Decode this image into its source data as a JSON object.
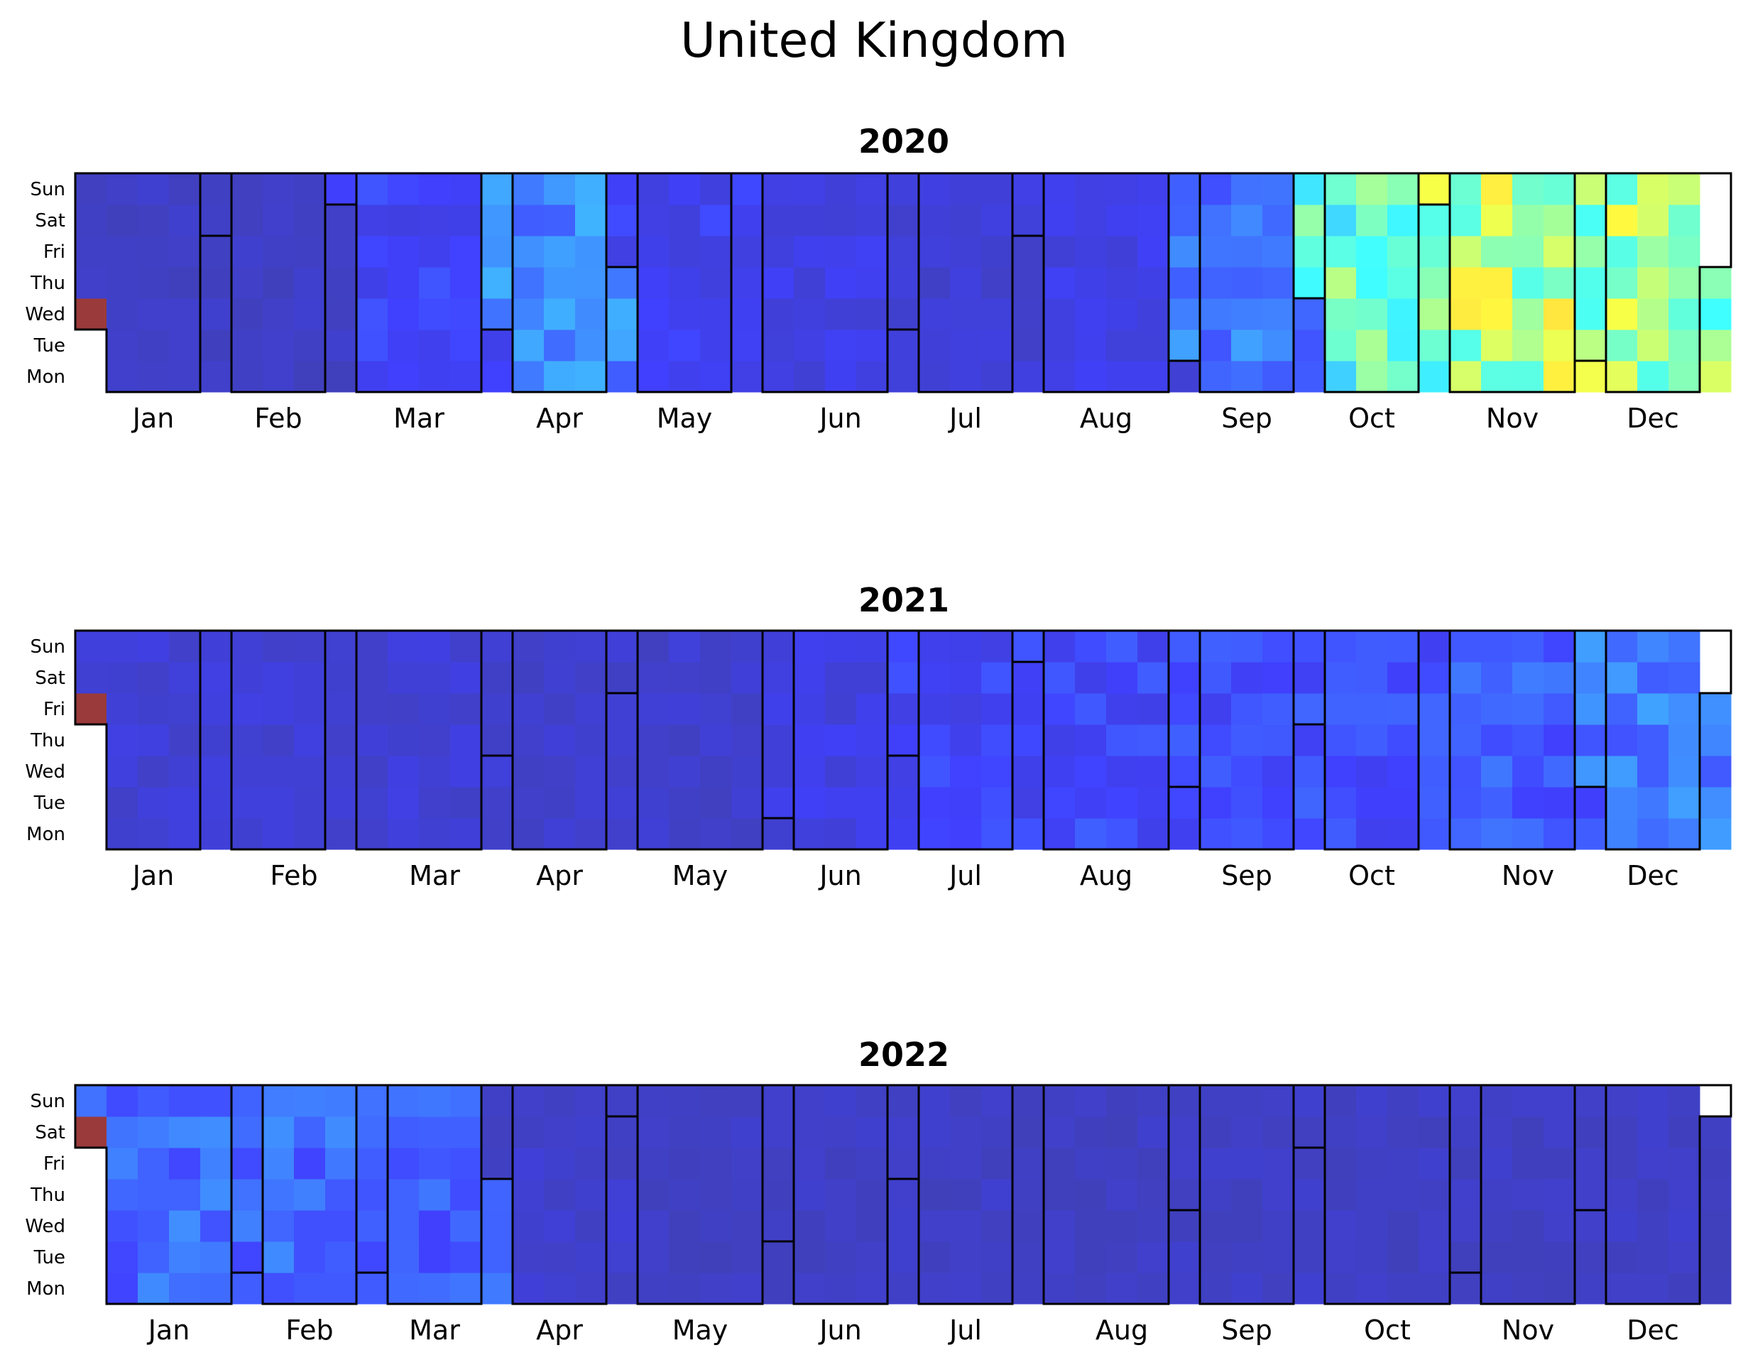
{
  "chart_data": {
    "type": "heatmap",
    "title": "United Kingdom",
    "colormap": "jet",
    "day_labels": [
      "Sun",
      "Sat",
      "Fri",
      "Thu",
      "Wed",
      "Tue",
      "Mon"
    ],
    "month_labels": [
      "Jan",
      "Feb",
      "Mar",
      "Apr",
      "May",
      "Jun",
      "Jul",
      "Aug",
      "Sep",
      "Oct",
      "Nov",
      "Dec"
    ],
    "grid": false,
    "legend": "none",
    "panels": [
      {
        "year": "2020",
        "first_weekday_mon0": 2,
        "days_in_year": 366,
        "first_day_color": "#9b3a3a",
        "monthly_intensity": [
          {
            "month": "Jan",
            "level": 0.05
          },
          {
            "month": "Feb",
            "level": 0.05
          },
          {
            "month": "Mar",
            "level": 0.12
          },
          {
            "month": "Apr",
            "level": 0.22
          },
          {
            "month": "May",
            "level": 0.11
          },
          {
            "month": "Jun",
            "level": 0.09
          },
          {
            "month": "Jul",
            "level": 0.07
          },
          {
            "month": "Aug",
            "level": 0.09
          },
          {
            "month": "Sep",
            "level": 0.2
          },
          {
            "month": "Oct",
            "level": 0.42
          },
          {
            "month": "Nov",
            "level": 0.52
          },
          {
            "month": "Dec",
            "level": 0.5
          }
        ]
      },
      {
        "year": "2021",
        "first_weekday_mon0": 4,
        "days_in_year": 365,
        "first_day_color": "#9b3a3a",
        "monthly_intensity": [
          {
            "month": "Jan",
            "level": 0.07
          },
          {
            "month": "Feb",
            "level": 0.07
          },
          {
            "month": "Mar",
            "level": 0.07
          },
          {
            "month": "Apr",
            "level": 0.06
          },
          {
            "month": "May",
            "level": 0.06
          },
          {
            "month": "Jun",
            "level": 0.09
          },
          {
            "month": "Jul",
            "level": 0.12
          },
          {
            "month": "Aug",
            "level": 0.13
          },
          {
            "month": "Sep",
            "level": 0.14
          },
          {
            "month": "Oct",
            "level": 0.14
          },
          {
            "month": "Nov",
            "level": 0.16
          },
          {
            "month": "Dec",
            "level": 0.2
          }
        ]
      },
      {
        "year": "2022",
        "first_weekday_mon0": 5,
        "days_in_year": 365,
        "first_day_color": "#9b3a3a",
        "monthly_intensity": [
          {
            "month": "Jan",
            "level": 0.18
          },
          {
            "month": "Feb",
            "level": 0.18
          },
          {
            "month": "Mar",
            "level": 0.16
          },
          {
            "month": "Apr",
            "level": 0.06
          },
          {
            "month": "May",
            "level": 0.05
          },
          {
            "month": "Jun",
            "level": 0.05
          },
          {
            "month": "Jul",
            "level": 0.05
          },
          {
            "month": "Aug",
            "level": 0.05
          },
          {
            "month": "Sep",
            "level": 0.05
          },
          {
            "month": "Oct",
            "level": 0.05
          },
          {
            "month": "Nov",
            "level": 0.05
          },
          {
            "month": "Dec",
            "level": 0.05
          }
        ]
      }
    ]
  }
}
